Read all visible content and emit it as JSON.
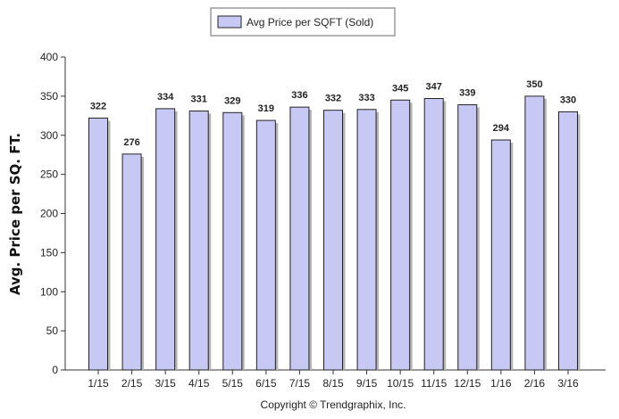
{
  "chart_data": {
    "type": "bar",
    "title": "",
    "xlabel": "",
    "ylabel": "Avg. Price per SQ. FT.",
    "ylim": [
      0,
      400
    ],
    "yticks": [
      0,
      50,
      100,
      150,
      200,
      250,
      300,
      350,
      400
    ],
    "categories": [
      "1/15",
      "2/15",
      "3/15",
      "4/15",
      "5/15",
      "6/15",
      "7/15",
      "8/15",
      "9/15",
      "10/15",
      "11/15",
      "12/15",
      "1/16",
      "2/16",
      "3/16"
    ],
    "series": [
      {
        "name": "Avg Price per SQFT (Sold)",
        "values": [
          322,
          276,
          334,
          331,
          329,
          319,
          336,
          332,
          333,
          345,
          347,
          339,
          294,
          350,
          330
        ]
      }
    ],
    "data_labels": true,
    "grid": false,
    "legend_position": "top-center",
    "colors": {
      "bar_fill": "#c8c8f4",
      "bar_stroke": "#222222"
    }
  },
  "footer": {
    "copyright": "Copyright © Trendgraphix, Inc."
  }
}
